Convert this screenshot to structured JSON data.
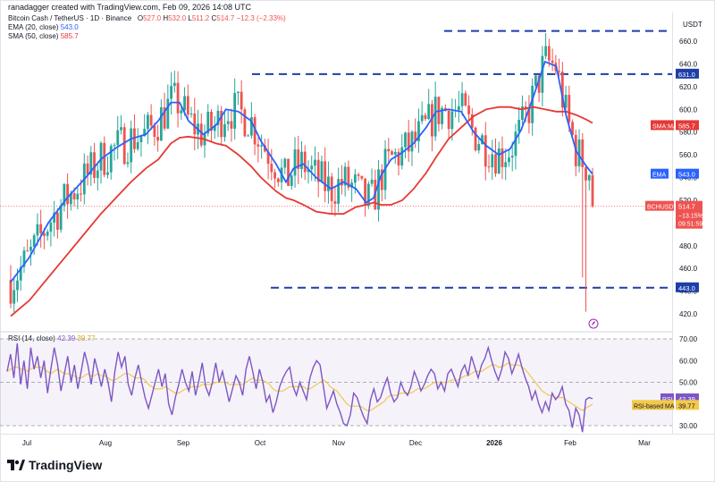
{
  "header": {
    "text": "ranadagger created with TradingView.com, Feb 09, 2026 14:08 UTC"
  },
  "legend": {
    "symbol_line": "Bitcoin Cash / TetherUS · 1D · Binance",
    "ohlc": {
      "o_label": "O",
      "o": "527.0",
      "h_label": "H",
      "h": "532.0",
      "l_label": "L",
      "l": "511.2",
      "c_label": "C",
      "c": "514.7",
      "change": "−12.3 (−2.33%)"
    },
    "ema_label": "EMA (20, close)",
    "ema_value": "543.0",
    "sma_label": "SMA (50, close)",
    "sma_value": "585.7"
  },
  "rsi_legend": {
    "label": "RSI (14, close)",
    "rsi_value": "42.39",
    "ma_value": "39.77"
  },
  "price_badges": {
    "sma": {
      "label": "SMA:MA",
      "value": "585.7"
    },
    "ema": {
      "label": "EMA",
      "value": "543.0"
    },
    "symbol": {
      "label": "BCHUSDT",
      "value": "514.7",
      "change": "−13.15%",
      "countdown": "09:51:59"
    },
    "level_631": "631.0",
    "level_443": "443.0"
  },
  "rsi_badges": {
    "rsi": {
      "label": "RSI",
      "value": "42.39"
    },
    "ma": {
      "label": "RSI-based MA",
      "value": "39.77"
    }
  },
  "brand": "TradingView",
  "colors": {
    "candle_up": "#26a69a",
    "candle_down": "#ef5350",
    "ema": "#2962ff",
    "sma": "#e53935",
    "rsi": "#7e57c2",
    "rsi_ma": "#f2c94c",
    "level": "#1e3ea8",
    "symbol_badge": "#ef5350"
  },
  "chart_data": [
    {
      "type": "candlestick",
      "symbol": "BCHUSDT",
      "currency": "USDT",
      "timeframe": "1D",
      "y_ticks": [
        420,
        440,
        460,
        480,
        500,
        520,
        540,
        560,
        580,
        600,
        620,
        640,
        660
      ],
      "x_ticks": [
        "Jul",
        "Aug",
        "Sep",
        "Oct",
        "Nov",
        "Dec",
        "2026",
        "Feb",
        "Mar"
      ],
      "ylim": [
        412,
        672
      ],
      "horizontal_levels": [
        631.0,
        443.0,
        669.0
      ],
      "ema20_path": [
        [
          0,
          448
        ],
        [
          15,
          470
        ],
        [
          30,
          500
        ],
        [
          45,
          522
        ],
        [
          60,
          540
        ],
        [
          72,
          556
        ],
        [
          84,
          566
        ],
        [
          96,
          574
        ],
        [
          108,
          578
        ],
        [
          118,
          590
        ],
        [
          128,
          606
        ],
        [
          135,
          606
        ],
        [
          142,
          590
        ],
        [
          154,
          578
        ],
        [
          164,
          586
        ],
        [
          172,
          600
        ],
        [
          182,
          598
        ],
        [
          192,
          590
        ],
        [
          200,
          572
        ],
        [
          212,
          552
        ],
        [
          220,
          536
        ],
        [
          226,
          548
        ],
        [
          234,
          552
        ],
        [
          244,
          540
        ],
        [
          256,
          530
        ],
        [
          266,
          536
        ],
        [
          276,
          530
        ],
        [
          284,
          518
        ],
        [
          290,
          522
        ],
        [
          296,
          542
        ],
        [
          304,
          556
        ],
        [
          313,
          562
        ],
        [
          322,
          570
        ],
        [
          332,
          584
        ],
        [
          340,
          598
        ],
        [
          350,
          600
        ],
        [
          360,
          598
        ],
        [
          370,
          580
        ],
        [
          380,
          568
        ],
        [
          390,
          560
        ],
        [
          399,
          565
        ],
        [
          408,
          582
        ],
        [
          418,
          612
        ],
        [
          427,
          642
        ],
        [
          436,
          638
        ],
        [
          444,
          594
        ],
        [
          452,
          563
        ],
        [
          460,
          550
        ],
        [
          465,
          543
        ]
      ],
      "sma50_path": [
        [
          0,
          418
        ],
        [
          15,
          432
        ],
        [
          30,
          452
        ],
        [
          45,
          472
        ],
        [
          60,
          492
        ],
        [
          72,
          508
        ],
        [
          84,
          522
        ],
        [
          96,
          536
        ],
        [
          108,
          548
        ],
        [
          118,
          556
        ],
        [
          128,
          570
        ],
        [
          135,
          575
        ],
        [
          142,
          576
        ],
        [
          154,
          574
        ],
        [
          164,
          570
        ],
        [
          172,
          568
        ],
        [
          182,
          560
        ],
        [
          192,
          550
        ],
        [
          200,
          540
        ],
        [
          212,
          528
        ],
        [
          220,
          522
        ],
        [
          226,
          520
        ],
        [
          234,
          516
        ],
        [
          244,
          510
        ],
        [
          256,
          508
        ],
        [
          266,
          508
        ],
        [
          276,
          514
        ],
        [
          284,
          516
        ],
        [
          290,
          518
        ],
        [
          296,
          516
        ],
        [
          304,
          516
        ],
        [
          313,
          520
        ],
        [
          322,
          530
        ],
        [
          332,
          544
        ],
        [
          340,
          558
        ],
        [
          350,
          574
        ],
        [
          360,
          584
        ],
        [
          370,
          594
        ],
        [
          380,
          600
        ],
        [
          390,
          602
        ],
        [
          399,
          602
        ],
        [
          408,
          600
        ],
        [
          418,
          602
        ],
        [
          427,
          600
        ],
        [
          436,
          598
        ],
        [
          444,
          598
        ],
        [
          452,
          595
        ],
        [
          460,
          591
        ],
        [
          465,
          588
        ]
      ],
      "last": {
        "open": 527.0,
        "high": 532.0,
        "low": 511.2,
        "close": 514.7
      }
    },
    {
      "type": "line",
      "name": "RSI (14, close)",
      "y_ticks": [
        30,
        40,
        50,
        60,
        70
      ],
      "ylim": [
        26,
        74
      ],
      "bands": [
        30,
        50,
        70
      ],
      "series": [
        {
          "name": "RSI",
          "values": [
            55,
            63,
            52,
            68,
            49,
            60,
            47,
            66,
            56,
            62,
            52,
            60,
            45,
            56,
            66,
            58,
            46,
            54,
            62,
            50,
            58,
            47,
            55,
            64,
            58,
            49,
            61,
            55,
            48,
            56,
            50,
            41,
            55,
            64,
            57,
            62,
            49,
            44,
            52,
            58,
            50,
            43,
            38,
            44,
            50,
            56,
            48,
            54,
            40,
            35,
            43,
            49,
            56,
            50,
            46,
            55,
            44,
            51,
            59,
            48,
            44,
            50,
            59,
            50,
            55,
            48,
            41,
            47,
            53,
            50,
            44,
            56,
            62,
            55,
            47,
            56,
            50,
            41,
            44,
            36,
            41,
            48,
            52,
            55,
            57,
            48,
            44,
            50,
            46,
            42,
            52,
            57,
            60,
            58,
            48,
            38,
            42,
            46,
            40,
            36,
            31,
            30,
            35,
            45,
            43,
            38,
            34,
            31,
            42,
            47,
            41,
            43,
            48,
            52,
            45,
            41,
            43,
            50,
            46,
            44,
            48,
            55,
            51,
            46,
            49,
            53,
            56,
            54,
            47,
            50,
            46,
            54,
            56,
            52,
            48,
            55,
            58,
            53,
            62,
            57,
            52,
            58,
            61,
            66,
            60,
            55,
            51,
            56,
            64,
            61,
            54,
            58,
            63,
            57,
            52,
            48,
            42,
            46,
            40,
            36,
            41,
            37,
            45,
            42,
            44,
            48,
            40,
            37,
            29,
            38,
            35,
            27,
            42,
            43,
            42.4
          ]
        },
        {
          "name": "RSI-based MA",
          "values": [
            55,
            56,
            57,
            57,
            56,
            56,
            55,
            56,
            57,
            57,
            57,
            56,
            55,
            54,
            55,
            56,
            55,
            54,
            54,
            53,
            53,
            52,
            52,
            53,
            54,
            53,
            53,
            54,
            53,
            53,
            52,
            51,
            51,
            52,
            53,
            54,
            54,
            53,
            52,
            52,
            52,
            51,
            49,
            48,
            47,
            47,
            47,
            48,
            47,
            46,
            45,
            45,
            46,
            47,
            47,
            48,
            48,
            48,
            49,
            49,
            49,
            49,
            50,
            50,
            50,
            50,
            49,
            49,
            49,
            49,
            49,
            50,
            51,
            52,
            51,
            51,
            51,
            50,
            49,
            47,
            46,
            46,
            46,
            47,
            48,
            48,
            48,
            48,
            48,
            47,
            47,
            48,
            49,
            50,
            51,
            50,
            48,
            47,
            46,
            44,
            42,
            40,
            39,
            39,
            39,
            39,
            38,
            37,
            37,
            38,
            39,
            40,
            41,
            43,
            44,
            44,
            44,
            45,
            45,
            45,
            45,
            46,
            47,
            47,
            47,
            48,
            49,
            50,
            50,
            50,
            50,
            50,
            51,
            51,
            51,
            52,
            53,
            53,
            54,
            55,
            55,
            55,
            56,
            57,
            58,
            58,
            57,
            57,
            58,
            59,
            58,
            58,
            58,
            57,
            56,
            54,
            52,
            50,
            48,
            46,
            45,
            44,
            44,
            43,
            43,
            43,
            42,
            41,
            40,
            39,
            38,
            37,
            38,
            39,
            39.8
          ]
        }
      ]
    }
  ]
}
